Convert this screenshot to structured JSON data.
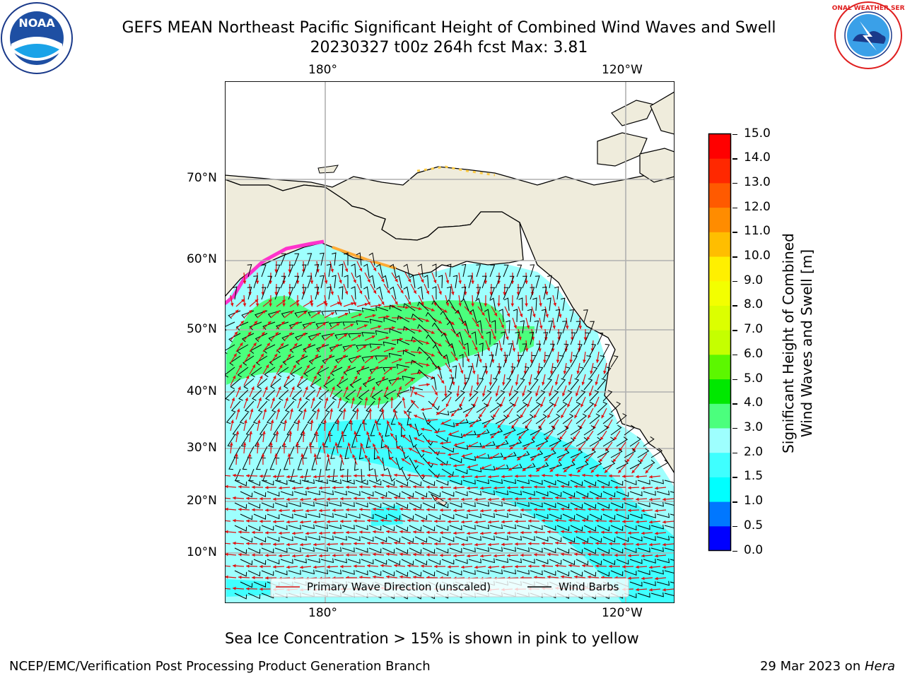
{
  "header": {
    "title_line1": "GEFS MEAN Northeast Pacific Significant Height of Combined Wind Waves and Swell",
    "title_line2": "20230327 t00z 264h fcst   Max: 3.81"
  },
  "logos": {
    "left": {
      "icon": "noaa-logo",
      "text": "NOAA"
    },
    "right": {
      "icon": "nws-logo",
      "text": "NATIONAL WEATHER SERVICE"
    }
  },
  "map": {
    "lon_labels_top": [
      "180°",
      "120°W"
    ],
    "lon_labels_bottom": [
      "180°",
      "120°W"
    ],
    "lat_labels": [
      "70°N",
      "60°N",
      "50°N",
      "40°N",
      "30°N",
      "20°N",
      "10°N"
    ],
    "land_color": "#efecdc",
    "ocean_base_color": "#9efffe",
    "wave_arrow_color": "#e01010",
    "barb_color": "#000000"
  },
  "legend": {
    "wave_label": "Primary Wave Direction (unscaled)",
    "wind_label": "Wind Barbs"
  },
  "colorbar": {
    "label_line1": "Significant Height of Combined",
    "label_line2": "Wind Waves and Swell [m]",
    "ticks": [
      "15.0",
      "14.0",
      "13.0",
      "12.0",
      "11.0",
      "10.0",
      "9.0",
      "8.0",
      "7.0",
      "6.0",
      "5.0",
      "4.0",
      "3.0",
      "2.0",
      "1.5",
      "1.0",
      "0.5",
      "0.0"
    ],
    "colors": [
      "#0000ff",
      "#0077ff",
      "#00ffff",
      "#3fffff",
      "#9efffe",
      "#4bff7d",
      "#00e800",
      "#5cf700",
      "#c5ff00",
      "#dcff00",
      "#f3ff00",
      "#fff000",
      "#ffbe00",
      "#ff8c00",
      "#ff5a00",
      "#ff2800",
      "#ff0000"
    ]
  },
  "caption": "Sea Ice Concentration > 15% is shown in pink to yellow",
  "footer": {
    "left": "NCEP/EMC/Verification Post Processing Product Generation Branch",
    "date": "29 Mar 2023 on ",
    "machine": "Hera"
  }
}
